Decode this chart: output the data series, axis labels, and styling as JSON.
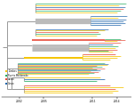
{
  "legend_entries": [
    {
      "label": "Tumbes",
      "color": "#F5C400"
    },
    {
      "label": "Puerto Maldonado",
      "color": "#27ae60"
    },
    {
      "label": "Callao",
      "color": "#e74c3c"
    },
    {
      "label": "Cusco",
      "color": "#2166ac"
    }
  ],
  "x_ticks": [
    2002,
    2005,
    2011,
    2014
  ],
  "x_tick_labels": [
    "2002",
    "2005",
    "2011",
    "2014"
  ],
  "xlim": [
    1999.8,
    2015.8
  ],
  "ylim": [
    -3,
    102
  ],
  "background_color": "#ffffff",
  "gray": "#888888",
  "lgray": "#bbbbbb"
}
